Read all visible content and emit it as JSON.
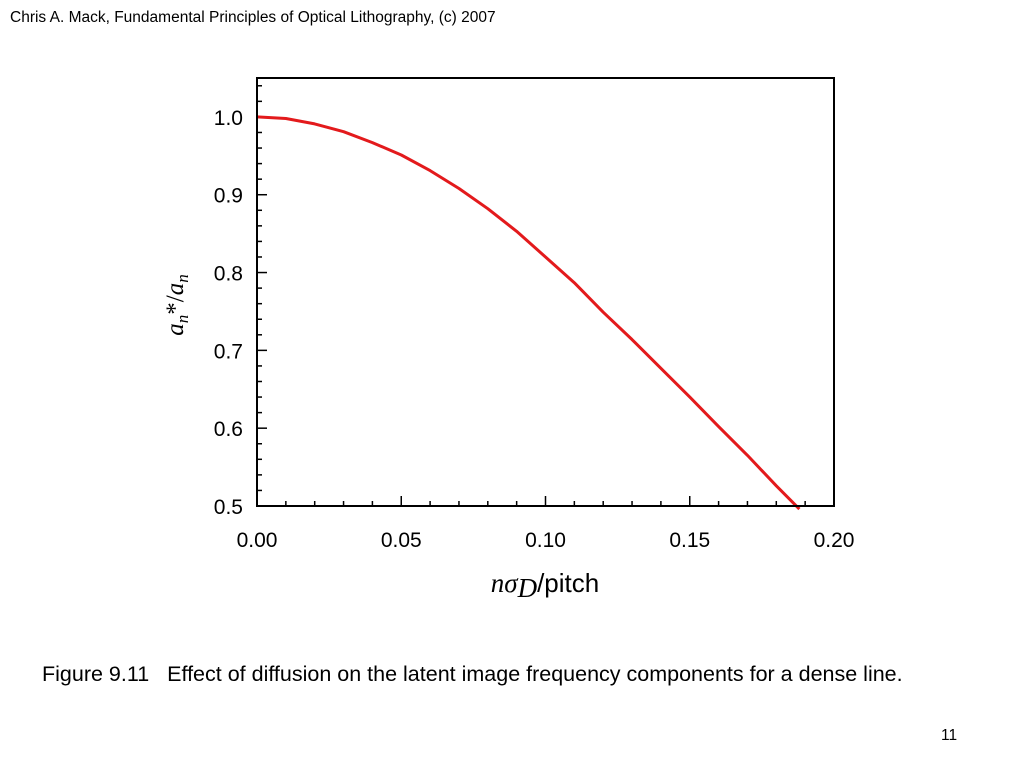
{
  "header": {
    "text": "Chris A. Mack, Fundamental Principles of Optical Lithography, (c) 2007"
  },
  "caption": {
    "number": "Figure 9.11",
    "text": "Effect of diffusion on the latent image frequency components for a dense line."
  },
  "slide_number": "11",
  "chart_data": {
    "type": "line",
    "title": "",
    "xlabel": {
      "n": "n",
      "sigma": "σ",
      "D": "D",
      "rest": "/pitch"
    },
    "ylabel": {
      "a1": "a",
      "n1": "n",
      "mid": "*/",
      "a2": "a",
      "n2": "n"
    },
    "xlim": [
      0.0,
      0.2
    ],
    "ylim": [
      0.5,
      1.05
    ],
    "x_ticks": [
      0.0,
      0.05,
      0.1,
      0.15,
      0.2
    ],
    "x_tick_labels": [
      "0.00",
      "0.05",
      "0.10",
      "0.15",
      "0.20"
    ],
    "y_ticks": [
      0.5,
      0.6,
      0.7,
      0.8,
      0.9,
      1.0
    ],
    "y_tick_labels": [
      "0.5",
      "0.6",
      "0.7",
      "0.8",
      "0.9",
      "1.0"
    ],
    "grid": false,
    "line_color": "#e31a1c",
    "series": [
      {
        "x": [
          0.0,
          0.01,
          0.02,
          0.03,
          0.04,
          0.05,
          0.06,
          0.07,
          0.08,
          0.09,
          0.1,
          0.11,
          0.12,
          0.13,
          0.14,
          0.15,
          0.16,
          0.17,
          0.18,
          0.188
        ],
        "y": [
          1.0,
          0.998,
          0.991,
          0.981,
          0.967,
          0.951,
          0.931,
          0.908,
          0.882,
          0.853,
          0.82,
          0.787,
          0.749,
          0.714,
          0.677,
          0.64,
          0.602,
          0.565,
          0.526,
          0.496
        ]
      }
    ]
  }
}
